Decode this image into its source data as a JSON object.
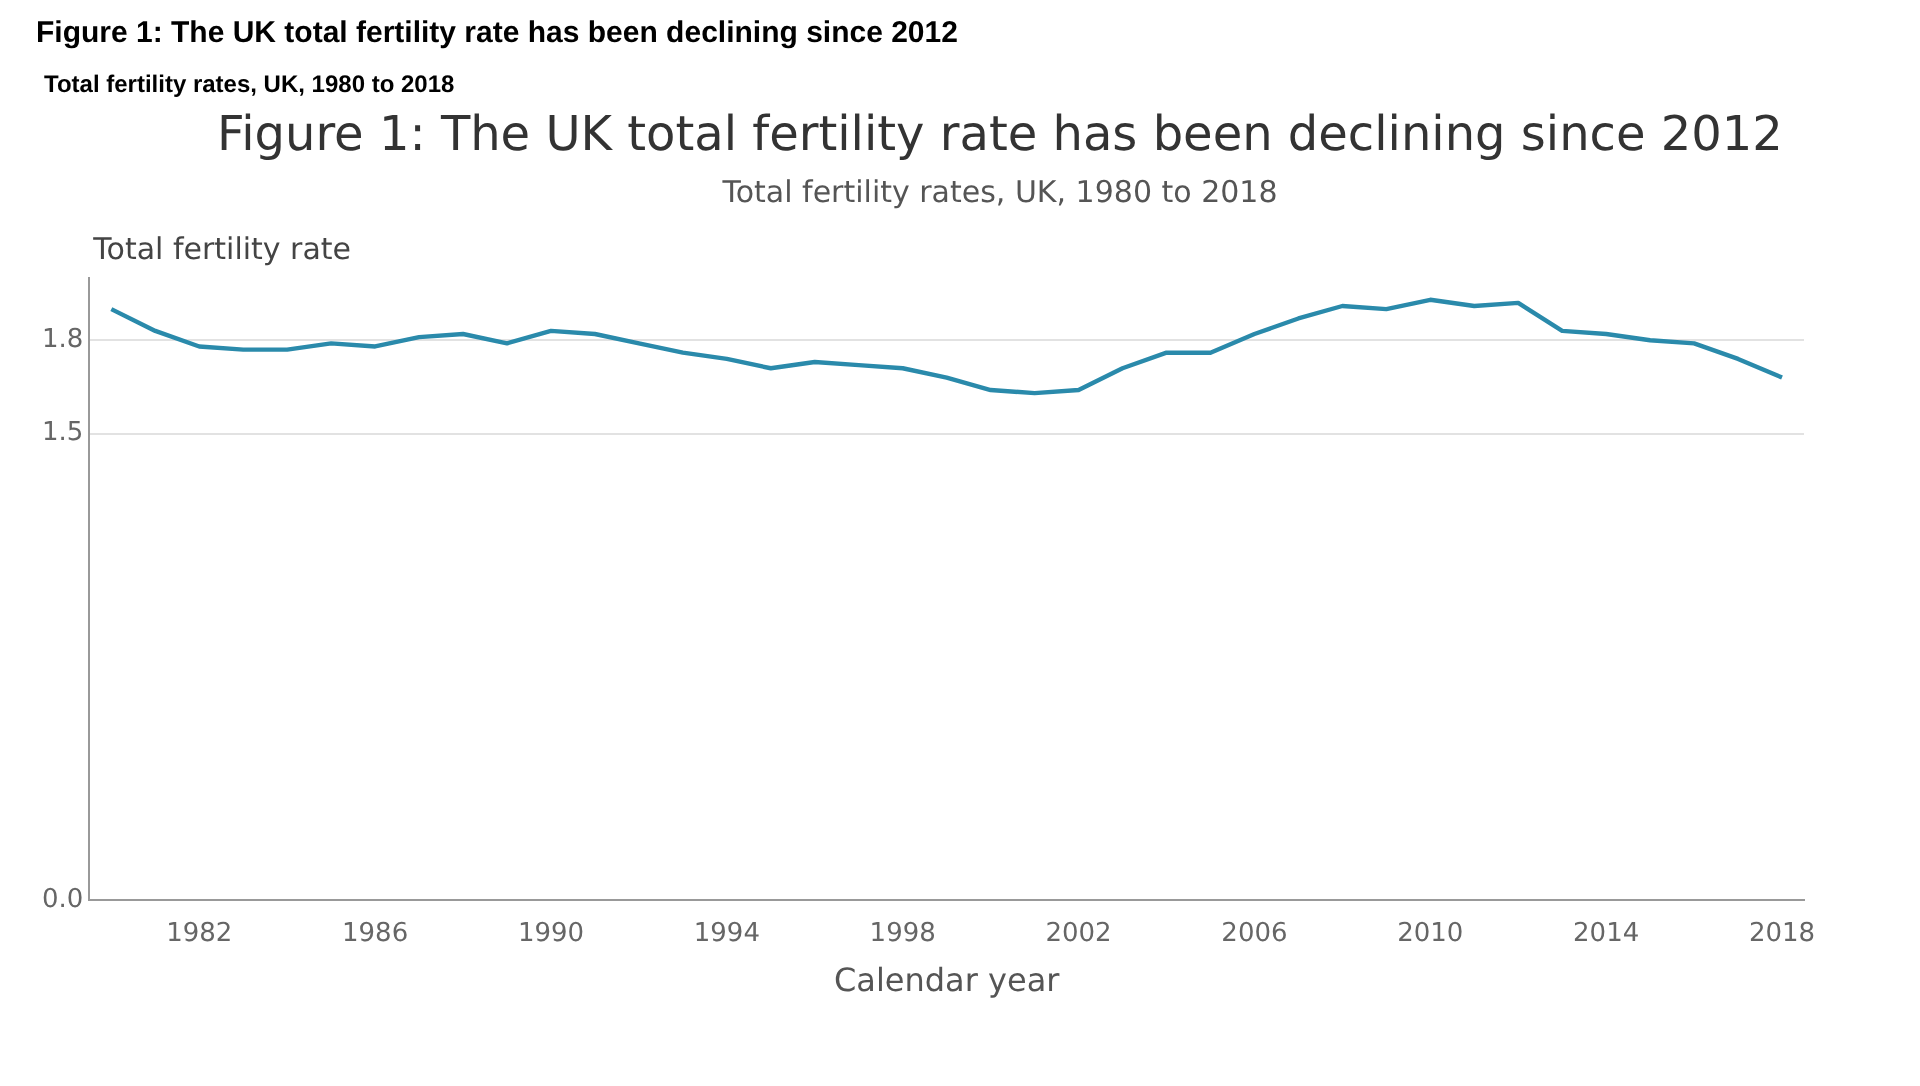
{
  "chart_data": {
    "type": "line",
    "title": "Figure 1: The UK total fertility rate has been declining since 2012",
    "subtitle": "Total fertility rates, UK, 1980 to 2018",
    "annotations": [
      "Figure 1: The UK total fertility rate has been declining since 2012",
      "Total fertility rates, UK, 1980 to 2018"
    ],
    "xlabel": "Calendar year",
    "ylabel": "Total fertility rate",
    "x": [
      1980,
      1981,
      1982,
      1983,
      1984,
      1985,
      1986,
      1987,
      1988,
      1989,
      1990,
      1991,
      1992,
      1993,
      1994,
      1995,
      1996,
      1997,
      1998,
      1999,
      2000,
      2001,
      2002,
      2003,
      2004,
      2005,
      2006,
      2007,
      2008,
      2009,
      2010,
      2011,
      2012,
      2013,
      2014,
      2015,
      2016,
      2017,
      2018
    ],
    "series": [
      {
        "color": "#2a8aab",
        "values": [
          1.9,
          1.83,
          1.78,
          1.77,
          1.77,
          1.79,
          1.78,
          1.81,
          1.82,
          1.79,
          1.83,
          1.82,
          1.79,
          1.76,
          1.74,
          1.71,
          1.73,
          1.72,
          1.71,
          1.68,
          1.64,
          1.63,
          1.64,
          1.71,
          1.76,
          1.76,
          1.82,
          1.87,
          1.91,
          1.9,
          1.93,
          1.91,
          1.92,
          1.83,
          1.82,
          1.8,
          1.79,
          1.74,
          1.68
        ]
      }
    ],
    "xlim": [
      1979.5,
      2018.5
    ],
    "xticks": [
      1982,
      1986,
      1990,
      1994,
      1998,
      2002,
      2006,
      2010,
      2014,
      2018
    ],
    "ylim": [
      0.0,
      2.0
    ],
    "yticks": [
      {
        "value": 0,
        "label": "0.0"
      },
      1.5,
      1.8
    ],
    "grid": "y",
    "legend": false,
    "marker": "none",
    "line_style": "solid"
  }
}
